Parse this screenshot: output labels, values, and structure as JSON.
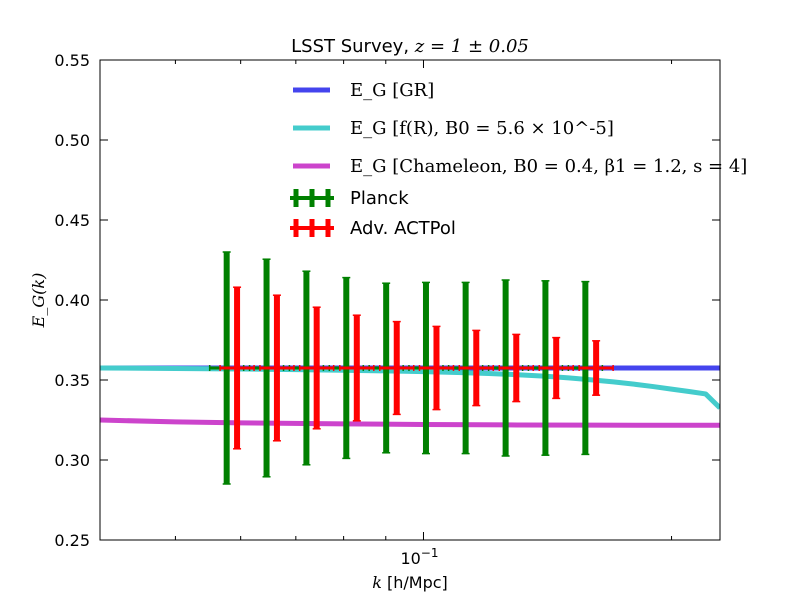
{
  "chart_data": {
    "type": "line",
    "title": "LSST Survey, z = 1 ± 0.05",
    "title_prefix": "LSST Survey, ",
    "title_math": "z = 1 ± 0.05",
    "xlabel": "k [h/Mpc]",
    "xlabel_math": "k",
    "xlabel_units": " [h/Mpc]",
    "ylabel": "E_G(k)",
    "xscale": "log",
    "xlim": [
      0.0405,
      0.229
    ],
    "ylim": [
      0.25,
      0.55
    ],
    "x_ticks": [
      {
        "value": 0.1,
        "label": "10^-1",
        "base": "10",
        "exp": "−1"
      }
    ],
    "y_ticks": [
      {
        "value": 0.25,
        "label": "0.25"
      },
      {
        "value": 0.3,
        "label": "0.30"
      },
      {
        "value": 0.35,
        "label": "0.35"
      },
      {
        "value": 0.4,
        "label": "0.40"
      },
      {
        "value": 0.45,
        "label": "0.45"
      },
      {
        "value": 0.5,
        "label": "0.50"
      },
      {
        "value": 0.55,
        "label": "0.55"
      }
    ],
    "minor_x_ticks": [
      0.05,
      0.06,
      0.07,
      0.08,
      0.09,
      0.2
    ],
    "series": [
      {
        "name": "E_G [GR]",
        "legend_label": "E_G [GR]",
        "color": "#4444ee",
        "kind": "line",
        "x": [
          0.0405,
          0.06,
          0.08,
          0.1,
          0.13,
          0.16,
          0.2,
          0.229
        ],
        "y": [
          0.3575,
          0.3575,
          0.3575,
          0.3575,
          0.3575,
          0.3575,
          0.3575,
          0.3575
        ]
      },
      {
        "name": "E_G [f(R), B_0 = 5.6 x 10^-5]",
        "legend_label": "E_G [f(R), B0 = 5.6 × 10^-5]",
        "color": "#44cccc",
        "kind": "line",
        "x": [
          0.0405,
          0.05,
          0.06,
          0.07,
          0.08,
          0.09,
          0.1,
          0.11,
          0.12,
          0.13,
          0.14,
          0.15,
          0.16,
          0.17,
          0.18,
          0.19,
          0.2,
          0.21,
          0.22,
          0.229
        ],
        "y": [
          0.3575,
          0.3572,
          0.3569,
          0.3565,
          0.3561,
          0.3557,
          0.3552,
          0.3547,
          0.3541,
          0.3533,
          0.3524,
          0.3513,
          0.3501,
          0.3488,
          0.3474,
          0.3459,
          0.3443,
          0.3428,
          0.3413,
          0.3325
        ]
      },
      {
        "name": "E_G [Chameleon, B_0 = 0.4, beta_1 = 1.2, s = 4]",
        "legend_label": "E_G [Chameleon, B0 = 0.4, β1 = 1.2, s = 4]",
        "color": "#cc44cc",
        "kind": "line",
        "x": [
          0.0405,
          0.05,
          0.06,
          0.08,
          0.1,
          0.13,
          0.16,
          0.2,
          0.229
        ],
        "y": [
          0.325,
          0.3238,
          0.3232,
          0.3226,
          0.3222,
          0.3219,
          0.3218,
          0.3217,
          0.3217
        ]
      },
      {
        "name": "Planck",
        "legend_label": "Planck",
        "color": "#008000",
        "kind": "errorbar",
        "x": [
          0.0577,
          0.0645,
          0.0721,
          0.0806,
          0.0901,
          0.1007,
          0.1125,
          0.1258,
          0.1406,
          0.1572
        ],
        "y": [
          0.3575,
          0.3575,
          0.3575,
          0.3575,
          0.3575,
          0.3575,
          0.3575,
          0.3575,
          0.3575,
          0.3575
        ],
        "yerr": [
          0.0725,
          0.068,
          0.0605,
          0.0565,
          0.053,
          0.0535,
          0.0535,
          0.055,
          0.0545,
          0.054
        ]
      },
      {
        "name": "Adv. ACTPol",
        "legend_label": "Adv. ACTPol",
        "color": "#ff0000",
        "kind": "errorbar",
        "x": [
          0.0594,
          0.0664,
          0.0742,
          0.083,
          0.0928,
          0.1037,
          0.1159,
          0.1296,
          0.1449,
          0.162
        ],
        "y": [
          0.3575,
          0.3575,
          0.3575,
          0.3575,
          0.3575,
          0.3575,
          0.3575,
          0.3575,
          0.3575,
          0.3575
        ],
        "yerr": [
          0.0505,
          0.0455,
          0.038,
          0.033,
          0.029,
          0.026,
          0.0235,
          0.021,
          0.019,
          0.017
        ]
      }
    ],
    "legend": "top-center"
  }
}
